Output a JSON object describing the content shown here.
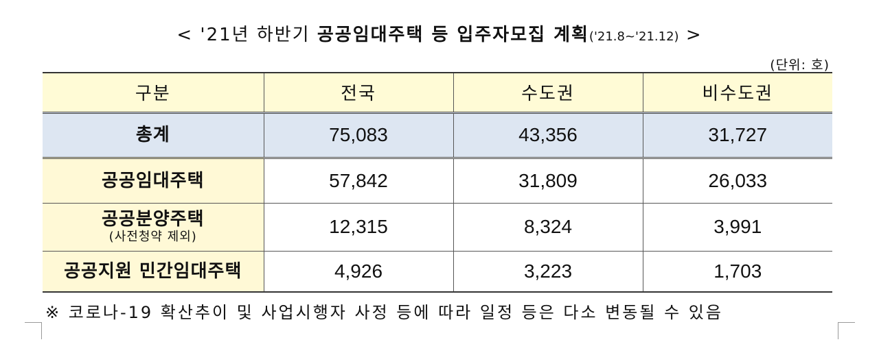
{
  "title": {
    "prefix": "< '21년 하반기 ",
    "bold": "공공임대주택",
    "middle": " 등 입주자모집 계획",
    "period": "('21.8~'21.12)",
    "suffix": " >"
  },
  "unit_note": "(단위: 호)",
  "table": {
    "headers": [
      "구분",
      "전국",
      "수도권",
      "비수도권"
    ],
    "rows": [
      {
        "label": "총계",
        "sublabel": "",
        "values": [
          "75,083",
          "43,356",
          "31,727"
        ]
      },
      {
        "label": "공공임대주택",
        "sublabel": "",
        "values": [
          "57,842",
          "31,809",
          "26,033"
        ]
      },
      {
        "label": "공공분양주택",
        "sublabel": "(사전청약 제외)",
        "values": [
          "12,315",
          "8,324",
          "3,991"
        ]
      },
      {
        "label": "공공지원 민간임대주택",
        "sublabel": "",
        "values": [
          "4,926",
          "3,223",
          "1,703"
        ]
      }
    ]
  },
  "footnote": "※ 코로나-19 확산추이 및 사업시행자 사정 등에 따라 일정 등은 다소 변동될 수 있음"
}
